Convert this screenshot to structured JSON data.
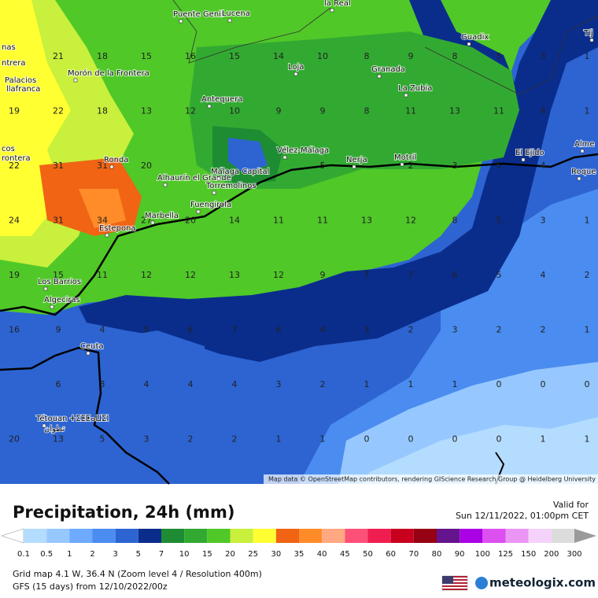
{
  "map": {
    "attribution": "Map data © OpenStreetMap contributors, rendering GIScience Research Group @ Heidelberg University",
    "places": [
      "la Real",
      "Puente Genil",
      "Lucena",
      "Guadix",
      "Tíj",
      "Loja",
      "Granada",
      "La Zubia",
      "Morón de la Frontera",
      "Palacios",
      "llafranca",
      "Antequera",
      "Vélez-Málaga",
      "Nerja",
      "Motril",
      "El Ejido",
      "Alme",
      "Roque de Ma",
      "Ronda",
      "Alhaurín el Grande",
      "Málaga Capital",
      "Torremolinos",
      "Fuengirola",
      "Marbella",
      "Estepona",
      "Los Barrios",
      "Algeciras",
      "Ceuta",
      "Tétouan ⵜⵉⵟⵟⴰⵡⵉⵏ",
      "تطوان",
      "nas",
      "ntrera",
      "cos",
      "rontera"
    ],
    "grid": [
      [
        null,
        21,
        18,
        15,
        16,
        15,
        14,
        10,
        8,
        9,
        8,
        5,
        3,
        1
      ],
      [
        19,
        22,
        18,
        13,
        12,
        10,
        9,
        9,
        8,
        11,
        13,
        11,
        4,
        1
      ],
      [
        22,
        31,
        31,
        20,
        null,
        null,
        null,
        5,
        null,
        2,
        3,
        5,
        4,
        null
      ],
      [
        24,
        31,
        34,
        27,
        20,
        14,
        11,
        11,
        13,
        12,
        8,
        5,
        3,
        1
      ],
      [
        19,
        15,
        11,
        12,
        12,
        13,
        12,
        9,
        7,
        7,
        6,
        5,
        4,
        2
      ],
      [
        16,
        9,
        4,
        5,
        6,
        7,
        6,
        4,
        3,
        2,
        3,
        2,
        2,
        1
      ],
      [
        null,
        6,
        3,
        4,
        4,
        4,
        3,
        2,
        1,
        1,
        1,
        0,
        0,
        0
      ],
      [
        20,
        13,
        5,
        3,
        2,
        2,
        1,
        1,
        0,
        0,
        0,
        0,
        1,
        1
      ]
    ]
  },
  "legend": {
    "title": "Precipitation, 24h (mm)",
    "ticks": [
      0.1,
      0.5,
      1,
      2,
      3,
      5,
      7,
      10,
      15,
      20,
      25,
      30,
      35,
      40,
      45,
      50,
      60,
      70,
      80,
      90,
      100,
      125,
      150,
      200,
      300
    ],
    "colors": [
      "#ffffff",
      "#b4dcff",
      "#96c8ff",
      "#6eaaff",
      "#4b8cf0",
      "#2d64d2",
      "#0a2d8c",
      "#1e8c32",
      "#32aa32",
      "#50c828",
      "#c8f03c",
      "#ffff32",
      "#f06414",
      "#ff8c28",
      "#ffa882",
      "#ff5078",
      "#f01e50",
      "#c8001e",
      "#960014",
      "#64148c",
      "#aa00e6",
      "#dc50f0",
      "#eb96f5",
      "#f5d2fa",
      "#dcdcdc",
      "#9a9a9a"
    ]
  },
  "valid": {
    "label": "Valid for",
    "time": "Sun 12/11/2022, 01:00pm CET"
  },
  "footer": {
    "grid_info": "Grid map 4.1 W, 36.4 N (Zoom level 4 / Resolution 400m)",
    "model": "GFS (15 days) from 12/10/2022/00z",
    "brand": "meteologix.com"
  }
}
